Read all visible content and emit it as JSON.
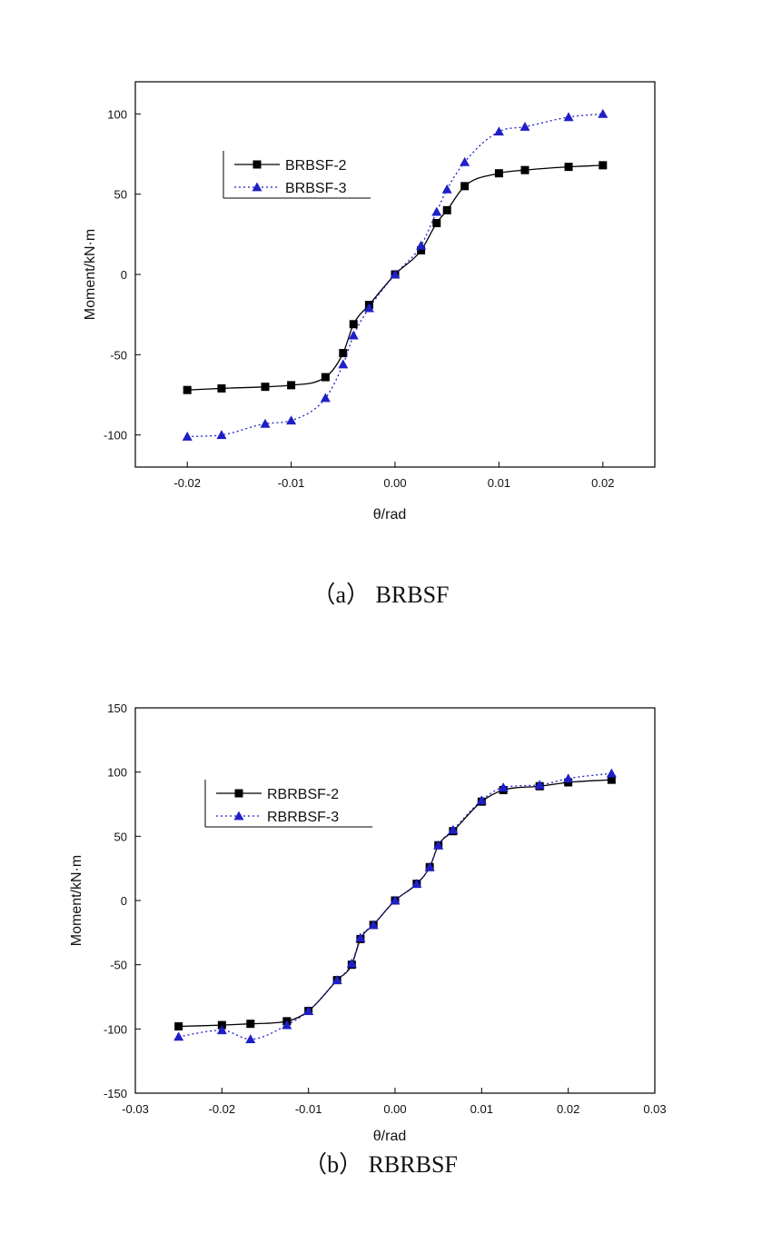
{
  "chart_data": [
    {
      "type": "line",
      "caption": "（a）  BRBSF",
      "xlabel": "θ/rad",
      "ylabel": "Moment/kN·m",
      "xlim": [
        -0.025,
        0.025
      ],
      "ylim": [
        -120,
        120
      ],
      "xticks": [
        -0.02,
        -0.01,
        0.0,
        0.01,
        0.02
      ],
      "xtick_labels": [
        "-0.02",
        "-0.01",
        "0.00",
        "0.01",
        "0.02"
      ],
      "yticks": [
        -100,
        -50,
        0,
        50,
        100
      ],
      "ytick_labels": [
        "-100",
        "-50",
        "0",
        "50",
        "100"
      ],
      "grid": false,
      "legend_position": "upper-left",
      "series": [
        {
          "name": "BRBSF-2",
          "marker": "square",
          "line": "solid",
          "color": "#000000",
          "x": [
            -0.02,
            -0.0167,
            -0.0125,
            -0.01,
            -0.0067,
            -0.005,
            -0.004,
            -0.0025,
            0.0,
            0.0025,
            0.004,
            0.005,
            0.0067,
            0.01,
            0.0125,
            0.0167,
            0.02
          ],
          "y": [
            -72,
            -71,
            -70,
            -69,
            -64,
            -49,
            -31,
            -19,
            0,
            15,
            32,
            40,
            55,
            63,
            65,
            67,
            68
          ]
        },
        {
          "name": "BRBSF-3",
          "marker": "triangle",
          "line": "dotted",
          "color": "#1f1fc8",
          "x": [
            -0.02,
            -0.0167,
            -0.0125,
            -0.01,
            -0.0067,
            -0.005,
            -0.004,
            -0.0025,
            0.0,
            0.0025,
            0.004,
            0.005,
            0.0067,
            0.01,
            0.0125,
            0.0167,
            0.02
          ],
          "y": [
            -101,
            -100,
            -93,
            -91,
            -77,
            -56,
            -38,
            -21,
            0,
            18,
            39,
            53,
            70,
            89,
            92,
            98,
            100
          ]
        }
      ]
    },
    {
      "type": "line",
      "caption": "（b）  RBRBSF",
      "xlabel": "θ/rad",
      "ylabel": "Moment/kN·m",
      "xlim": [
        -0.03,
        0.03
      ],
      "ylim": [
        -150,
        150
      ],
      "xticks": [
        -0.03,
        -0.02,
        -0.01,
        0.0,
        0.01,
        0.02,
        0.03
      ],
      "xtick_labels": [
        "-0.03",
        "-0.02",
        "-0.01",
        "0.00",
        "0.01",
        "0.02",
        "0.03"
      ],
      "yticks": [
        -150,
        -100,
        -50,
        0,
        50,
        100,
        150
      ],
      "ytick_labels": [
        "-150",
        "-100",
        "-50",
        "0",
        "50",
        "100",
        "150"
      ],
      "grid": false,
      "legend_position": "upper-left",
      "series": [
        {
          "name": "RBRBSF-2",
          "marker": "square",
          "line": "solid",
          "color": "#000000",
          "x": [
            -0.025,
            -0.02,
            -0.0167,
            -0.0125,
            -0.01,
            -0.0067,
            -0.005,
            -0.004,
            -0.0025,
            0.0,
            0.0025,
            0.004,
            0.005,
            0.0067,
            0.01,
            0.0125,
            0.0167,
            0.02,
            0.025
          ],
          "y": [
            -98,
            -97,
            -96,
            -94,
            -86,
            -62,
            -50,
            -30,
            -19,
            0,
            13,
            26,
            43,
            54,
            77,
            86,
            89,
            92,
            94
          ]
        },
        {
          "name": "RBRBSF-3",
          "marker": "triangle",
          "line": "dotted",
          "color": "#1f1fc8",
          "x": [
            -0.025,
            -0.02,
            -0.0167,
            -0.0125,
            -0.01,
            -0.0067,
            -0.005,
            -0.004,
            -0.0025,
            0.0,
            0.0025,
            0.004,
            0.005,
            0.0067,
            0.01,
            0.0125,
            0.0167,
            0.02,
            0.025
          ],
          "y": [
            -106,
            -101,
            -108,
            -97,
            -86,
            -62,
            -49,
            -29,
            -19,
            0,
            13,
            26,
            43,
            55,
            78,
            88,
            90,
            95,
            99
          ]
        }
      ]
    }
  ]
}
